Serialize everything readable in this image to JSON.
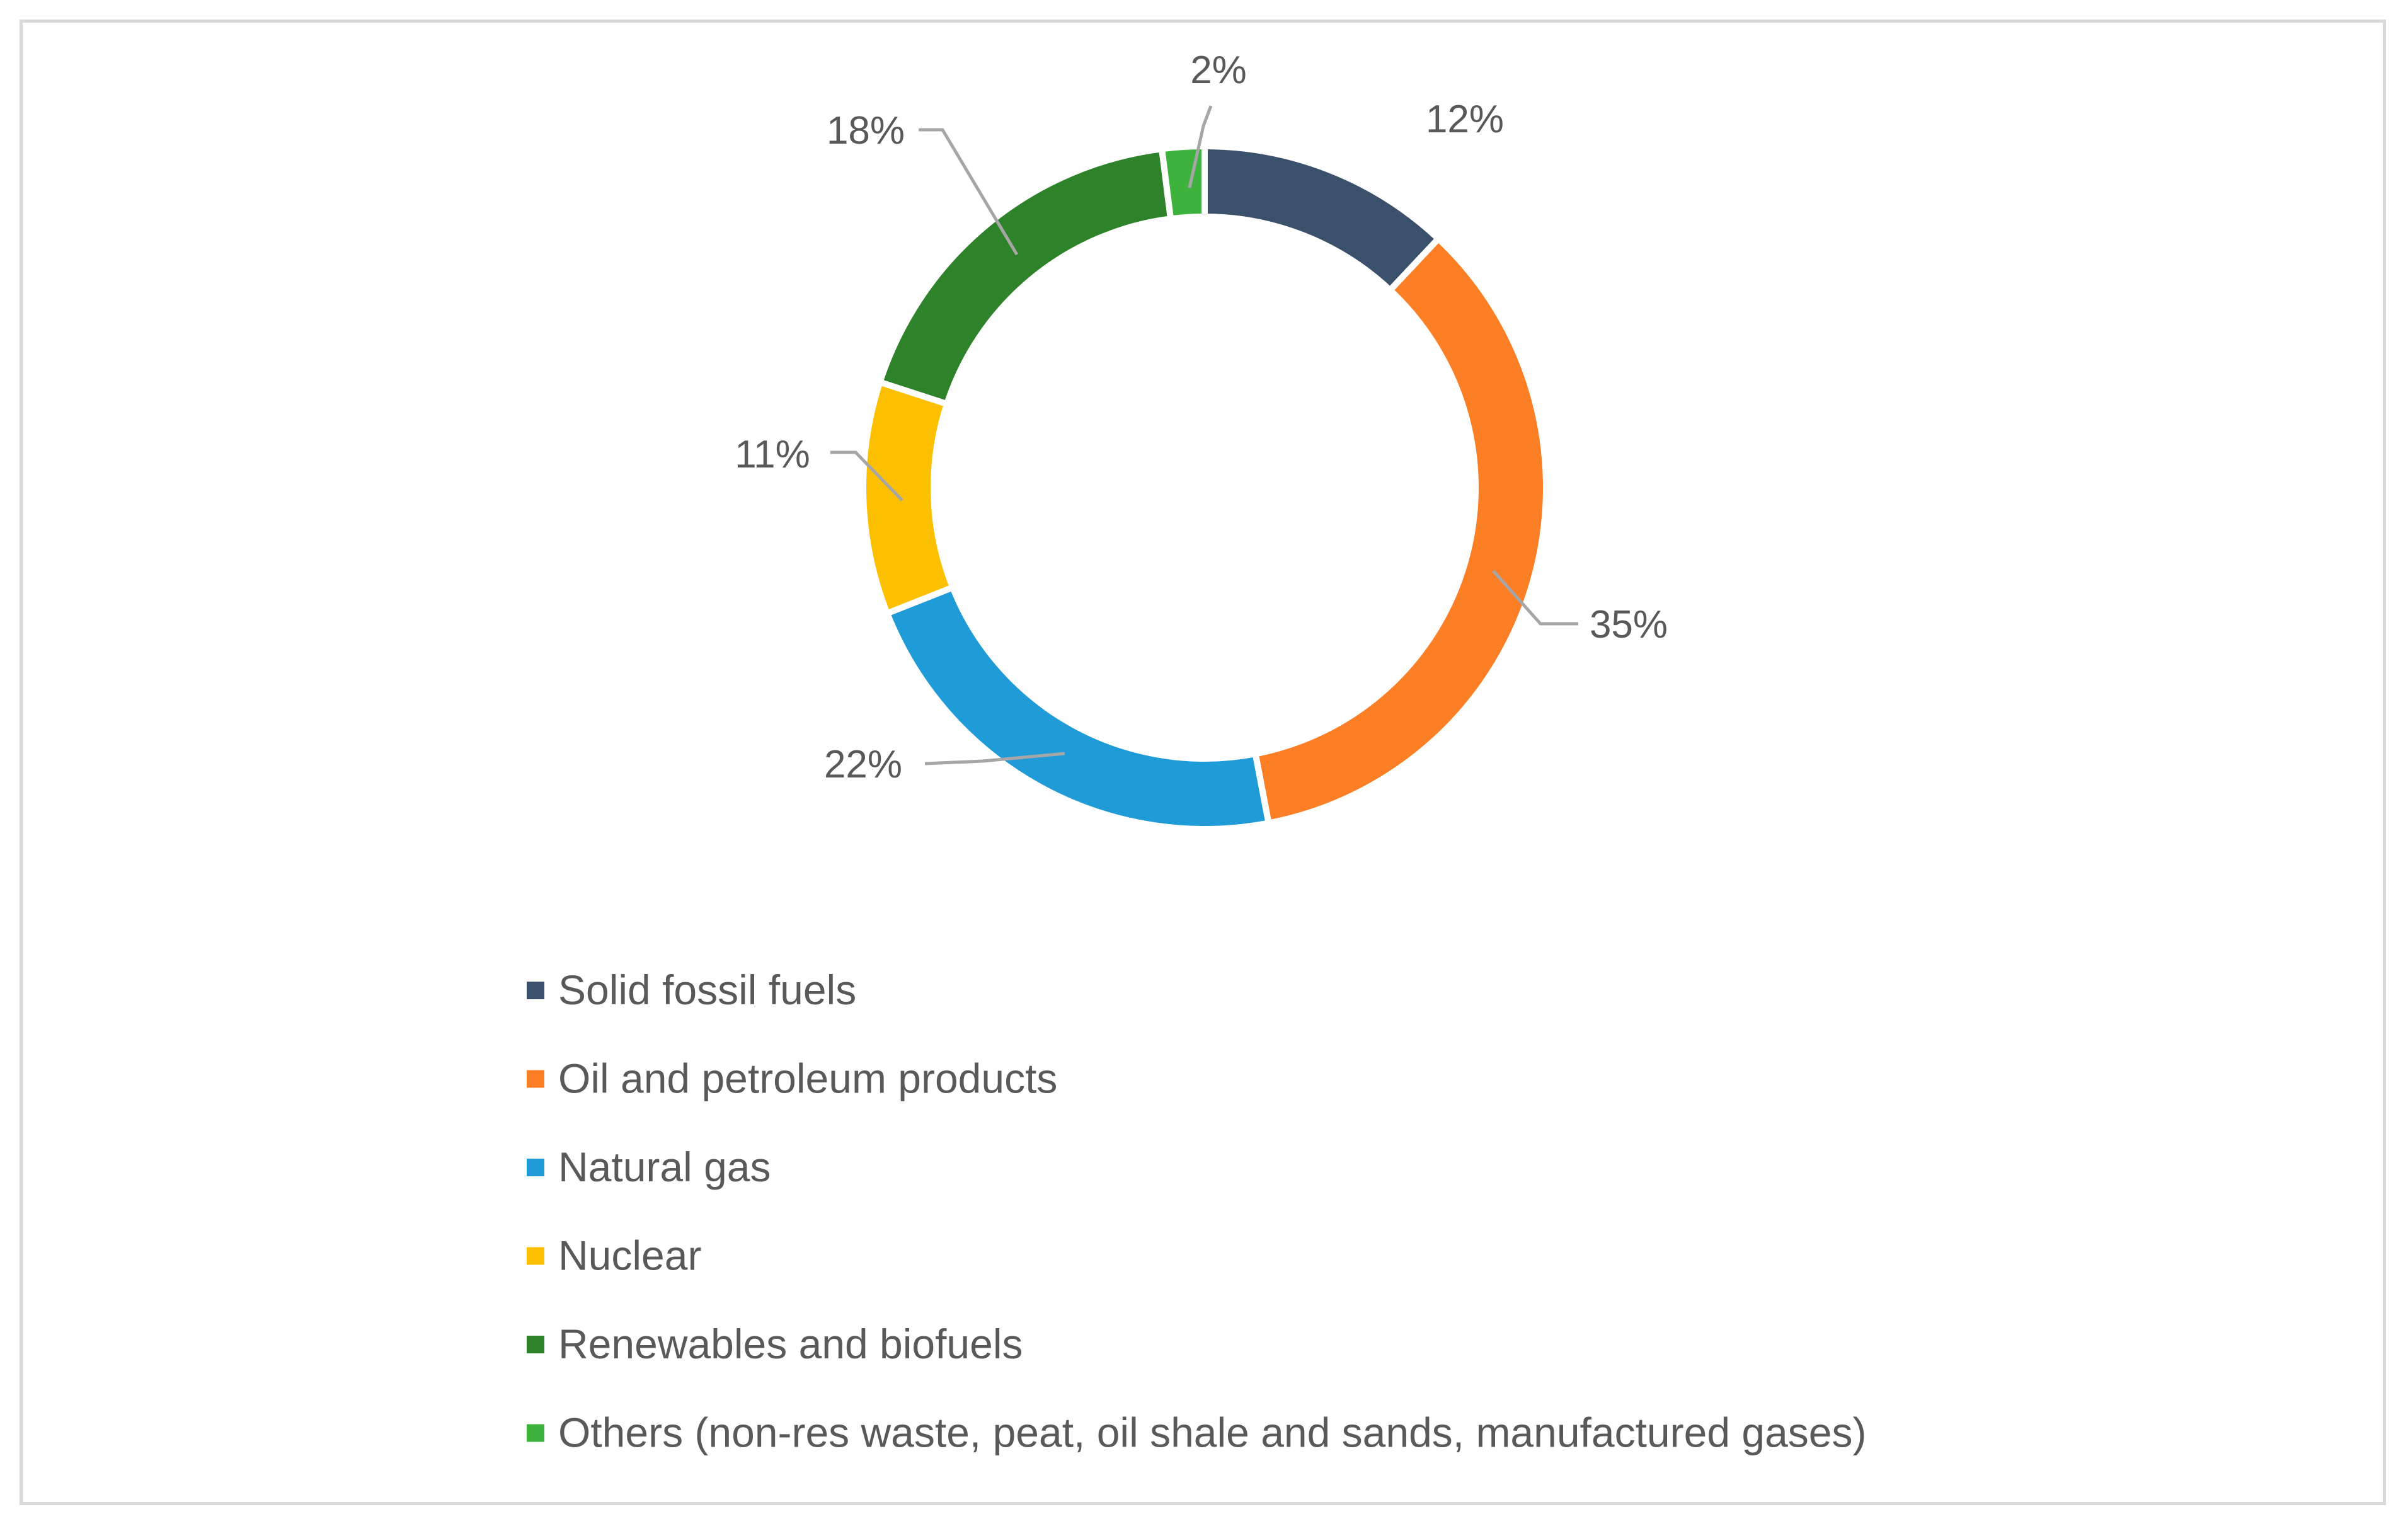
{
  "chart_data": {
    "type": "pie",
    "variant": "donut",
    "title": "",
    "categories": [
      "Solid fossil fuels",
      "Oil and petroleum products",
      "Natural gas",
      "Nuclear",
      "Renewables and biofuels",
      "Others (non-res waste, peat, oil shale and sands, manufactured gases)"
    ],
    "values": [
      12,
      35,
      22,
      11,
      18,
      2
    ],
    "labels": [
      "12%",
      "35%",
      "22%",
      "11%",
      "18%",
      "2%"
    ],
    "colors": [
      "#3b506b",
      "#fd7f25",
      "#1f9bd7",
      "#fdc000",
      "#2e8229",
      "#3db33e"
    ],
    "legend_position": "bottom"
  }
}
